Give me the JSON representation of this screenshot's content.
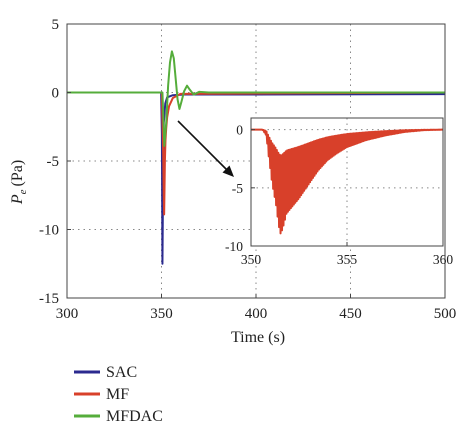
{
  "chart_data": [
    {
      "type": "line",
      "xlabel": "Time (s)",
      "ylabel_main": "P",
      "ylabel_sub": "e",
      "ylabel_unit": "(Pa)",
      "xlim": [
        300,
        500
      ],
      "ylim": [
        -15,
        5
      ],
      "xticks": [
        300,
        350,
        400,
        450,
        500
      ],
      "yticks": [
        5,
        0,
        -5,
        -10,
        -15
      ],
      "grid": "dotted",
      "legend_position": "bottom-left-outside",
      "series": [
        {
          "name": "SAC",
          "color": "#2b2a8f",
          "points": [
            [
              300,
              0
            ],
            [
              349.8,
              0
            ],
            [
              350.2,
              -3.0
            ],
            [
              350.5,
              -12.5
            ],
            [
              350.8,
              -7.0
            ],
            [
              351.2,
              -2.2
            ],
            [
              352.0,
              -0.8
            ],
            [
              353.0,
              -0.35
            ],
            [
              356.0,
              -0.2
            ],
            [
              362.0,
              -0.15
            ],
            [
              500,
              -0.12
            ]
          ]
        },
        {
          "name": "MF",
          "color": "#d8402a",
          "points": [
            [
              300,
              0
            ],
            [
              350.2,
              0
            ],
            [
              350.5,
              -2.0
            ],
            [
              350.9,
              -4.5
            ],
            [
              351.2,
              -7.5
            ],
            [
              351.4,
              -8.9
            ],
            [
              351.6,
              -7.0
            ],
            [
              351.8,
              -5.0
            ],
            [
              352.1,
              -3.5
            ],
            [
              352.5,
              -2.6
            ],
            [
              353.0,
              -1.8
            ],
            [
              354.0,
              -1.0
            ],
            [
              356.0,
              -0.4
            ],
            [
              360.0,
              -0.1
            ],
            [
              500,
              0
            ]
          ]
        },
        {
          "name": "MFDAC",
          "color": "#55ad3b",
          "points": [
            [
              300,
              0
            ],
            [
              350.5,
              0
            ],
            [
              351.5,
              -3.9
            ],
            [
              352.5,
              -2.2
            ],
            [
              353.5,
              0.5
            ],
            [
              354.5,
              2.2
            ],
            [
              355.5,
              3.0
            ],
            [
              356.5,
              2.5
            ],
            [
              357.5,
              1.0
            ],
            [
              358.5,
              -0.5
            ],
            [
              359.5,
              -1.2
            ],
            [
              360.5,
              -0.7
            ],
            [
              362.0,
              0.1
            ],
            [
              363.5,
              0.5
            ],
            [
              365.0,
              0.2
            ],
            [
              367.0,
              -0.15
            ],
            [
              370.0,
              0.05
            ],
            [
              375.0,
              0
            ],
            [
              500,
              0
            ]
          ]
        }
      ]
    },
    {
      "type": "line",
      "role": "inset",
      "xlim": [
        350,
        360
      ],
      "ylim": [
        -10,
        1
      ],
      "xticks": [
        350,
        355,
        360
      ],
      "yticks": [
        0,
        -5,
        -10
      ],
      "grid": "dotted",
      "series": [
        {
          "name": "MF",
          "color": "#d8402a",
          "points": [
            [
              350,
              0
            ],
            [
              350.6,
              0
            ],
            [
              350.8,
              -0.5
            ],
            [
              350.9,
              -2.0
            ],
            [
              351.1,
              -4.6
            ],
            [
              351.3,
              -6.4
            ],
            [
              351.45,
              -8.3
            ],
            [
              351.55,
              -9.0
            ],
            [
              351.7,
              -8.2
            ],
            [
              351.85,
              -7.2
            ],
            [
              352.1,
              -6.7
            ],
            [
              352.5,
              -5.9
            ],
            [
              353.0,
              -4.7
            ],
            [
              353.5,
              -3.5
            ],
            [
              354.0,
              -2.6
            ],
            [
              354.5,
              -2.0
            ],
            [
              355.0,
              -1.5
            ],
            [
              356.0,
              -0.9
            ],
            [
              357.0,
              -0.5
            ],
            [
              358.0,
              -0.2
            ],
            [
              359.0,
              -0.05
            ],
            [
              360,
              0
            ]
          ],
          "oscillation": "dense"
        }
      ]
    }
  ]
}
